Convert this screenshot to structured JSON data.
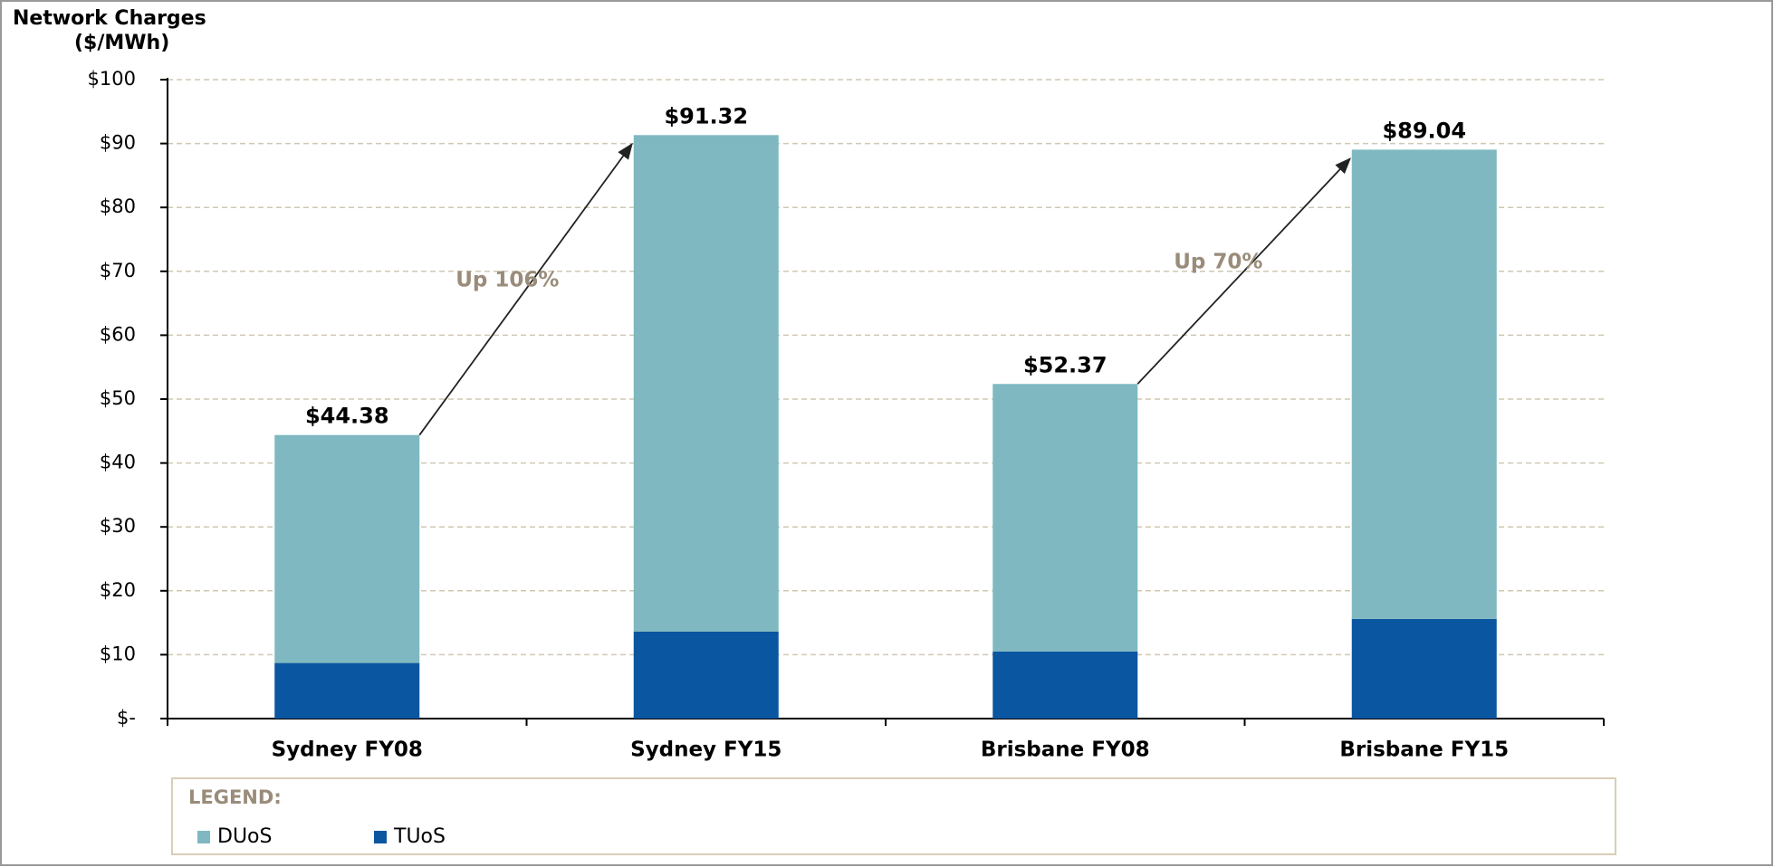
{
  "chart_data": {
    "type": "stacked_bar",
    "title": "Network Charges",
    "ylabel": "($/MWh)",
    "categories": [
      "Sydney FY08",
      "Sydney FY15",
      "Brisbane FY08",
      "Brisbane FY15"
    ],
    "series": [
      {
        "name": "DUoS",
        "color": "#7fb8c0",
        "values": [
          35.68,
          77.72,
          41.87,
          73.44
        ]
      },
      {
        "name": "TUoS",
        "color": "#0a56a0",
        "values": [
          8.7,
          13.6,
          10.5,
          15.6
        ]
      }
    ],
    "totals": {
      "values": [
        44.38,
        91.32,
        52.37,
        89.04
      ],
      "value_labels": [
        "$44.38",
        "$91.32",
        "$52.37",
        "$89.04"
      ]
    },
    "annotations": [
      "Up 106%",
      "Up 70%"
    ],
    "legend_title": "LEGEND:",
    "ylim": [
      0,
      100
    ],
    "yticks": [
      {
        "value": 0,
        "label": "$-"
      },
      {
        "value": 10,
        "label": "$10"
      },
      {
        "value": 20,
        "label": "$20"
      },
      {
        "value": 30,
        "label": "$30"
      },
      {
        "value": 40,
        "label": "$40"
      },
      {
        "value": 50,
        "label": "$50"
      },
      {
        "value": 60,
        "label": "$60"
      },
      {
        "value": 70,
        "label": "$70"
      },
      {
        "value": 80,
        "label": "$80"
      },
      {
        "value": 90,
        "label": "$90"
      },
      {
        "value": 100,
        "label": "$100"
      }
    ],
    "grid": true
  }
}
